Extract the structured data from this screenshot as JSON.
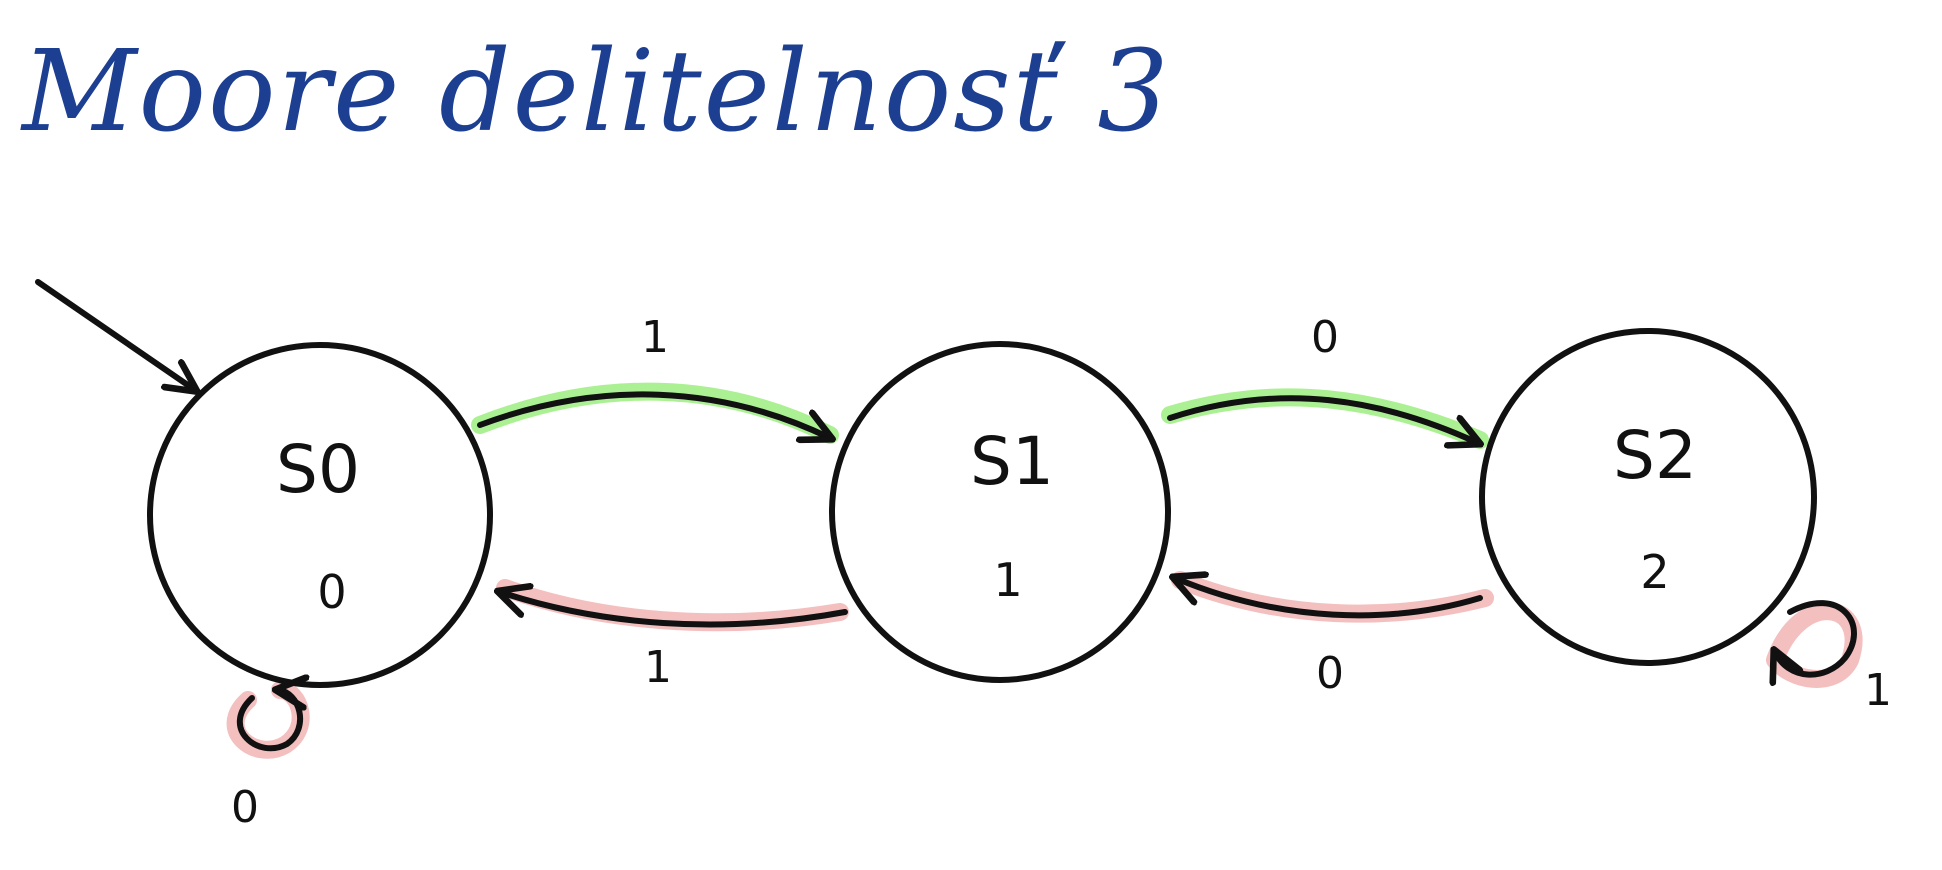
{
  "title": "Moore delitelnosť 3",
  "colors": {
    "title": "#1d3f91",
    "ink": "#111111",
    "highlight_forward": "#a6f08d",
    "highlight_backward": "#f2bcbc"
  },
  "states": [
    {
      "name": "S0",
      "output": "0",
      "initial": true
    },
    {
      "name": "S1",
      "output": "1",
      "initial": false
    },
    {
      "name": "S2",
      "output": "2",
      "initial": false
    }
  ],
  "transitions": [
    {
      "from": "S0",
      "to": "S1",
      "label": "1",
      "highlight": "green"
    },
    {
      "from": "S1",
      "to": "S0",
      "label": "1",
      "highlight": "red"
    },
    {
      "from": "S1",
      "to": "S2",
      "label": "0",
      "highlight": "green"
    },
    {
      "from": "S2",
      "to": "S1",
      "label": "0",
      "highlight": "red"
    },
    {
      "from": "S0",
      "to": "S0",
      "label": "0",
      "highlight": "red"
    },
    {
      "from": "S2",
      "to": "S2",
      "label": "1",
      "highlight": "red"
    }
  ]
}
